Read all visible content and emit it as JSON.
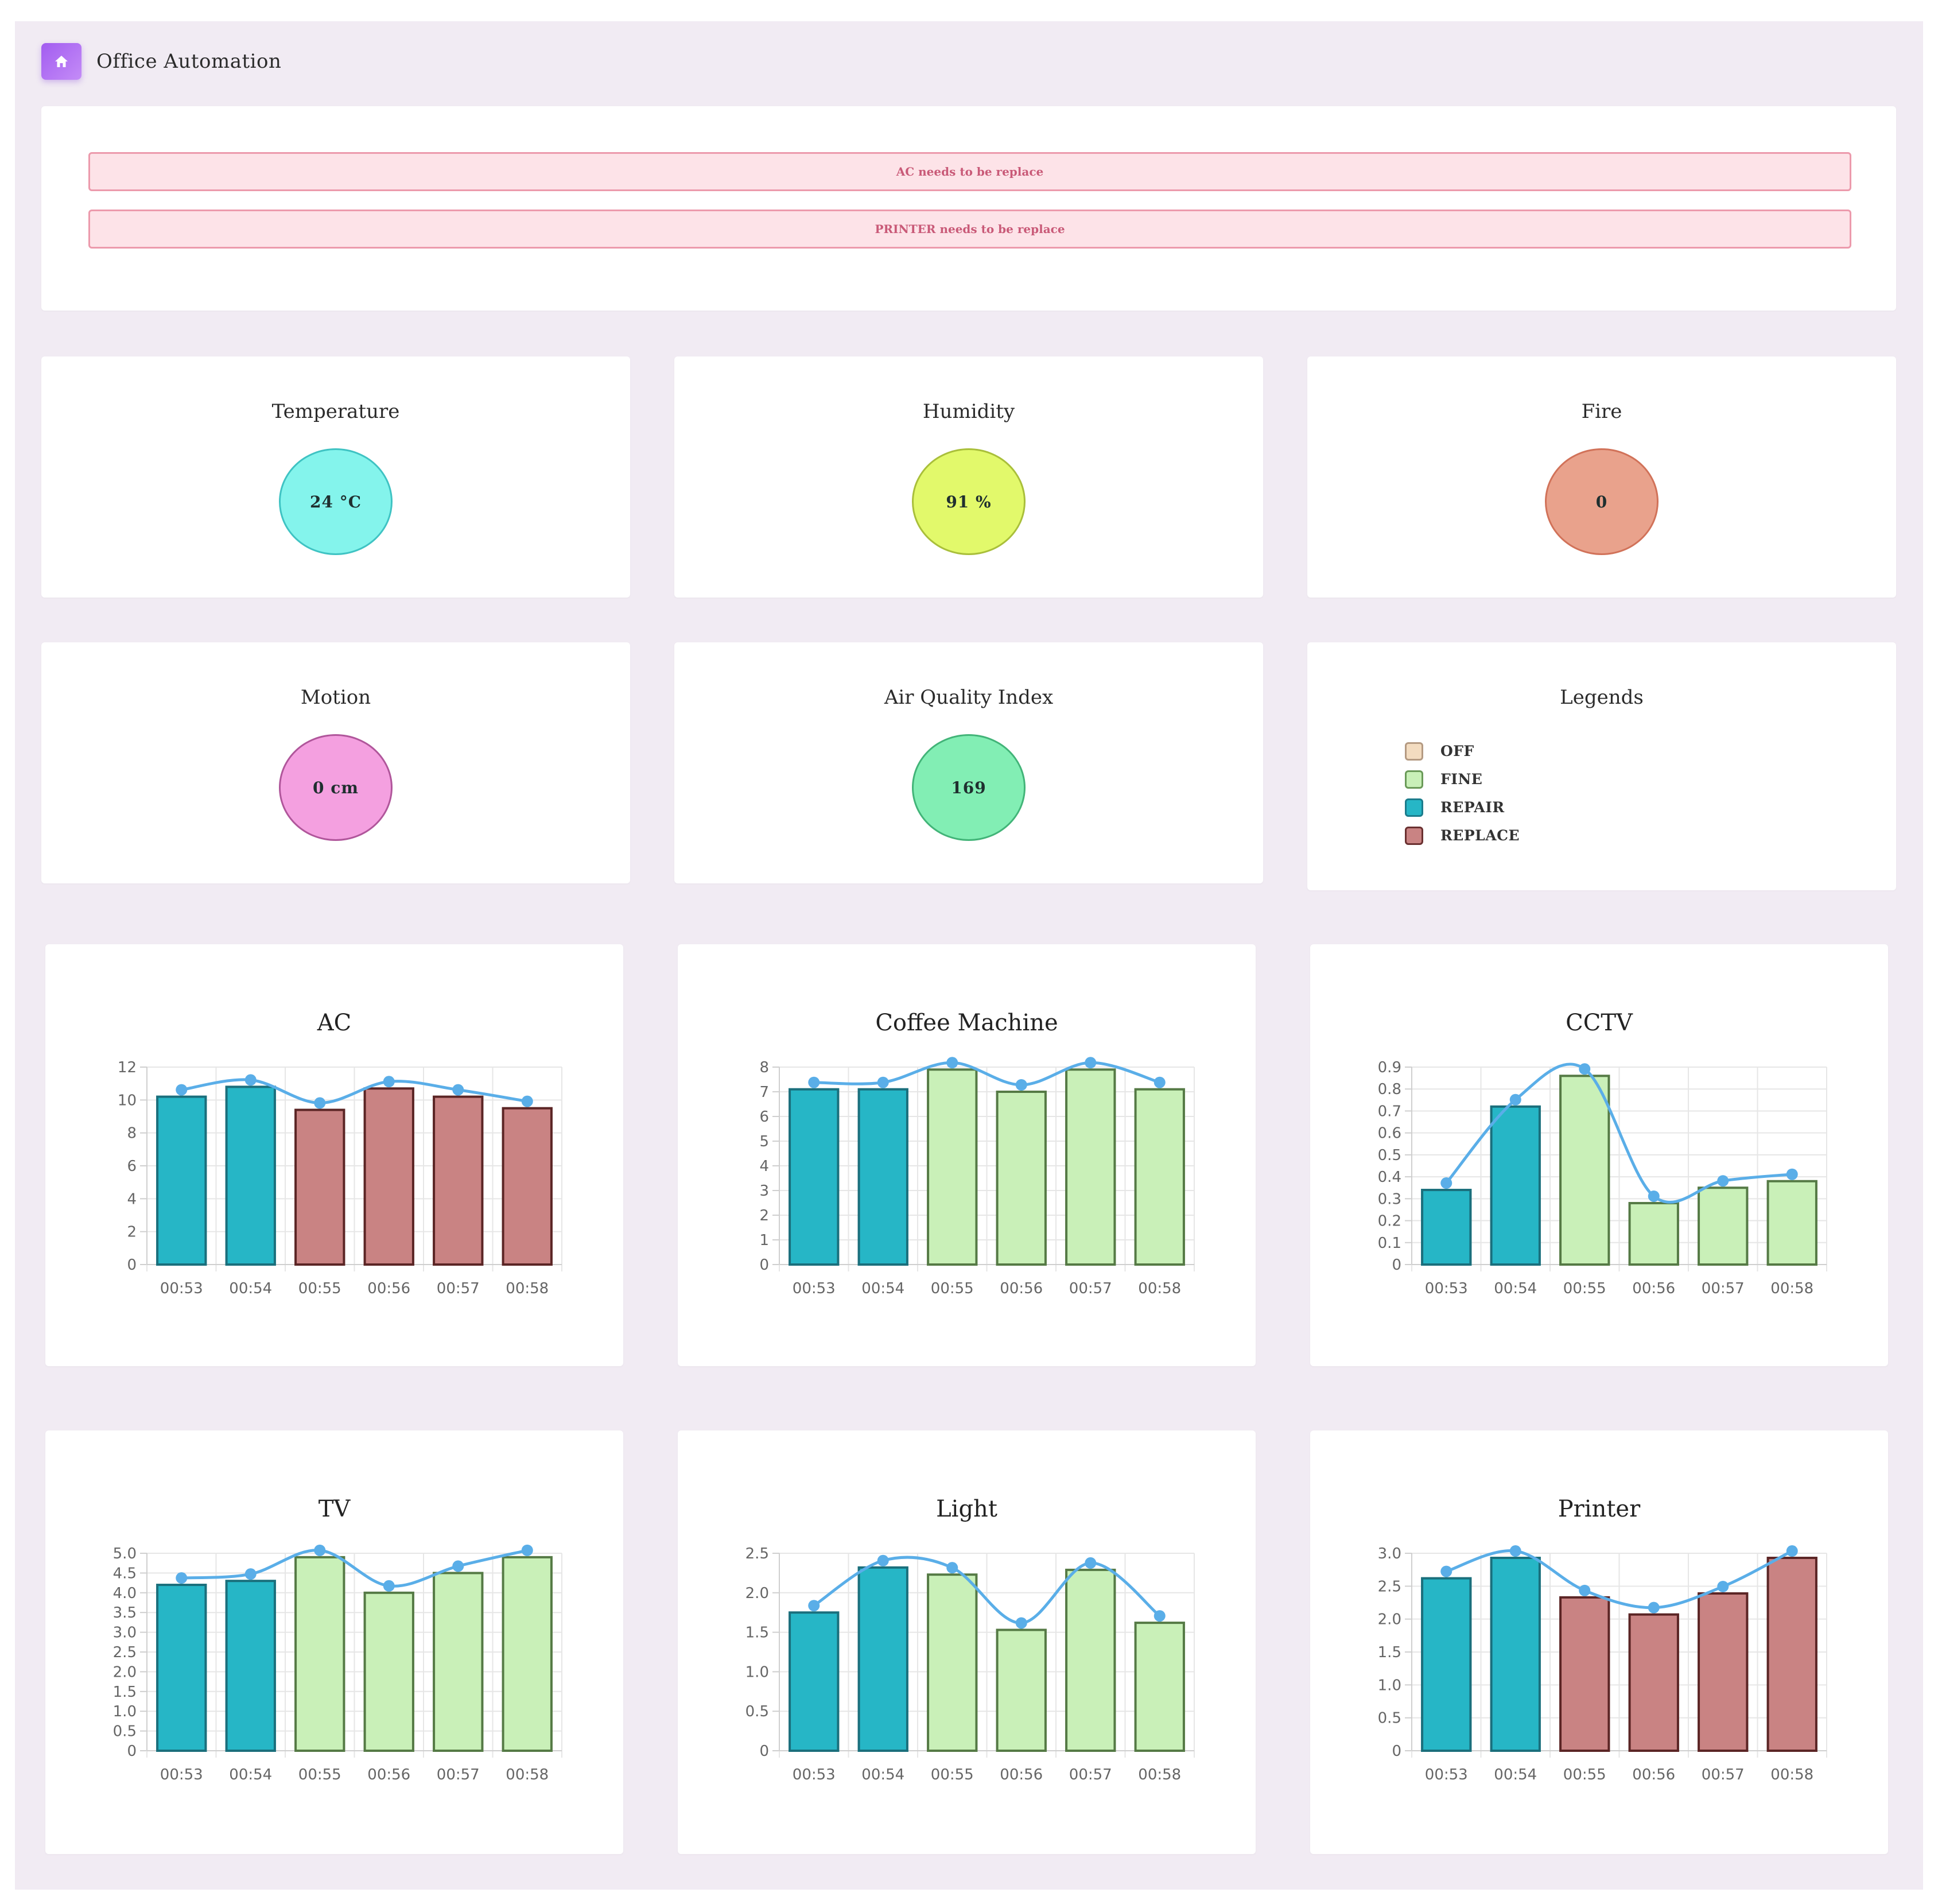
{
  "app": {
    "title": "Office Automation",
    "home_icon": "home-icon"
  },
  "alerts": [
    {
      "text": "AC needs to be replace"
    },
    {
      "text": "PRINTER needs to be replace"
    }
  ],
  "sensors": [
    {
      "title": "Temperature",
      "value": "24 °C",
      "fill": "#84f4ec",
      "stroke": "#3fc3c3"
    },
    {
      "title": "Humidity",
      "value": "91 %",
      "fill": "#e2f96b",
      "stroke": "#a9bf3a"
    },
    {
      "title": "Fire",
      "value": "0",
      "fill": "#e9a28c",
      "stroke": "#d17259"
    },
    {
      "title": "Motion",
      "value": "0 cm",
      "fill": "#f4a0e0",
      "stroke": "#b0569b"
    },
    {
      "title": "Air Quality Index",
      "value": "169",
      "fill": "#82eeb4",
      "stroke": "#42b478"
    }
  ],
  "legends": {
    "title": "Legends",
    "items": [
      {
        "label": "OFF",
        "color": "#f3dcc0",
        "border": "#b49a82"
      },
      {
        "label": "FINE",
        "color": "#c9f0b8",
        "border": "#6a9a58"
      },
      {
        "label": "REPAIR",
        "color": "#26b6c6",
        "border": "#1b7c8c"
      },
      {
        "label": "REPLACE",
        "color": "#c98383",
        "border": "#6a3030"
      }
    ]
  },
  "status_colors": {
    "REPAIR": {
      "fill": "#26b6c6",
      "stroke": "#1a6f7c"
    },
    "FINE": {
      "fill": "#c9f0b8",
      "stroke": "#557a45"
    },
    "REPLACE": {
      "fill": "#c98383",
      "stroke": "#5b2525"
    },
    "OFF": {
      "fill": "#f3dcc0",
      "stroke": "#b49a82"
    }
  },
  "line_color": "#5aaee8",
  "chart_data": [
    {
      "type": "bar",
      "title": "AC",
      "categories": [
        "00:53",
        "00:54",
        "00:55",
        "00:56",
        "00:57",
        "00:58"
      ],
      "values": [
        10.2,
        10.8,
        9.4,
        10.7,
        10.2,
        9.5
      ],
      "status": [
        "REPAIR",
        "REPAIR",
        "REPLACE",
        "REPLACE",
        "REPLACE",
        "REPLACE"
      ],
      "ylim": [
        0,
        12
      ],
      "yticks": [
        "0",
        "2",
        "4",
        "6",
        "8",
        "10",
        "12"
      ]
    },
    {
      "type": "bar",
      "title": "Coffee Machine",
      "categories": [
        "00:53",
        "00:54",
        "00:55",
        "00:56",
        "00:57",
        "00:58"
      ],
      "values": [
        7.1,
        7.1,
        7.9,
        7.0,
        7.9,
        7.1
      ],
      "status": [
        "REPAIR",
        "REPAIR",
        "FINE",
        "FINE",
        "FINE",
        "FINE"
      ],
      "ylim": [
        0,
        8
      ],
      "yticks": [
        "0",
        "1",
        "2",
        "3",
        "4",
        "5",
        "6",
        "7",
        "8"
      ]
    },
    {
      "type": "bar",
      "title": "CCTV",
      "categories": [
        "00:53",
        "00:54",
        "00:55",
        "00:56",
        "00:57",
        "00:58"
      ],
      "values": [
        0.34,
        0.72,
        0.86,
        0.28,
        0.35,
        0.38
      ],
      "status": [
        "REPAIR",
        "REPAIR",
        "FINE",
        "FINE",
        "FINE",
        "FINE"
      ],
      "ylim": [
        0,
        0.9
      ],
      "yticks": [
        "0",
        "0.1",
        "0.2",
        "0.3",
        "0.4",
        "0.5",
        "0.6",
        "0.7",
        "0.8",
        "0.9"
      ]
    },
    {
      "type": "bar",
      "title": "TV",
      "categories": [
        "00:53",
        "00:54",
        "00:55",
        "00:56",
        "00:57",
        "00:58"
      ],
      "values": [
        4.2,
        4.3,
        4.9,
        4.0,
        4.5,
        4.9
      ],
      "status": [
        "REPAIR",
        "REPAIR",
        "FINE",
        "FINE",
        "FINE",
        "FINE"
      ],
      "ylim": [
        0,
        5
      ],
      "yticks": [
        "0",
        "0.5",
        "1.0",
        "1.5",
        "2.0",
        "2.5",
        "3.0",
        "3.5",
        "4.0",
        "4.5",
        "5.0"
      ]
    },
    {
      "type": "bar",
      "title": "Light",
      "categories": [
        "00:53",
        "00:54",
        "00:55",
        "00:56",
        "00:57",
        "00:58"
      ],
      "values": [
        1.75,
        2.32,
        2.23,
        1.53,
        2.29,
        1.62
      ],
      "status": [
        "REPAIR",
        "REPAIR",
        "FINE",
        "FINE",
        "FINE",
        "FINE"
      ],
      "ylim": [
        0,
        2.5
      ],
      "yticks": [
        "0",
        "0.5",
        "1.0",
        "1.5",
        "2.0",
        "2.5"
      ]
    },
    {
      "type": "bar",
      "title": "Printer",
      "categories": [
        "00:53",
        "00:54",
        "00:55",
        "00:56",
        "00:57",
        "00:58"
      ],
      "values": [
        2.62,
        2.93,
        2.33,
        2.07,
        2.39,
        2.93
      ],
      "status": [
        "REPAIR",
        "REPAIR",
        "REPLACE",
        "REPLACE",
        "REPLACE",
        "REPLACE"
      ],
      "ylim": [
        0,
        3.0
      ],
      "yticks": [
        "0",
        "0.5",
        "1.0",
        "1.5",
        "2.0",
        "2.5",
        "3.0"
      ]
    }
  ]
}
